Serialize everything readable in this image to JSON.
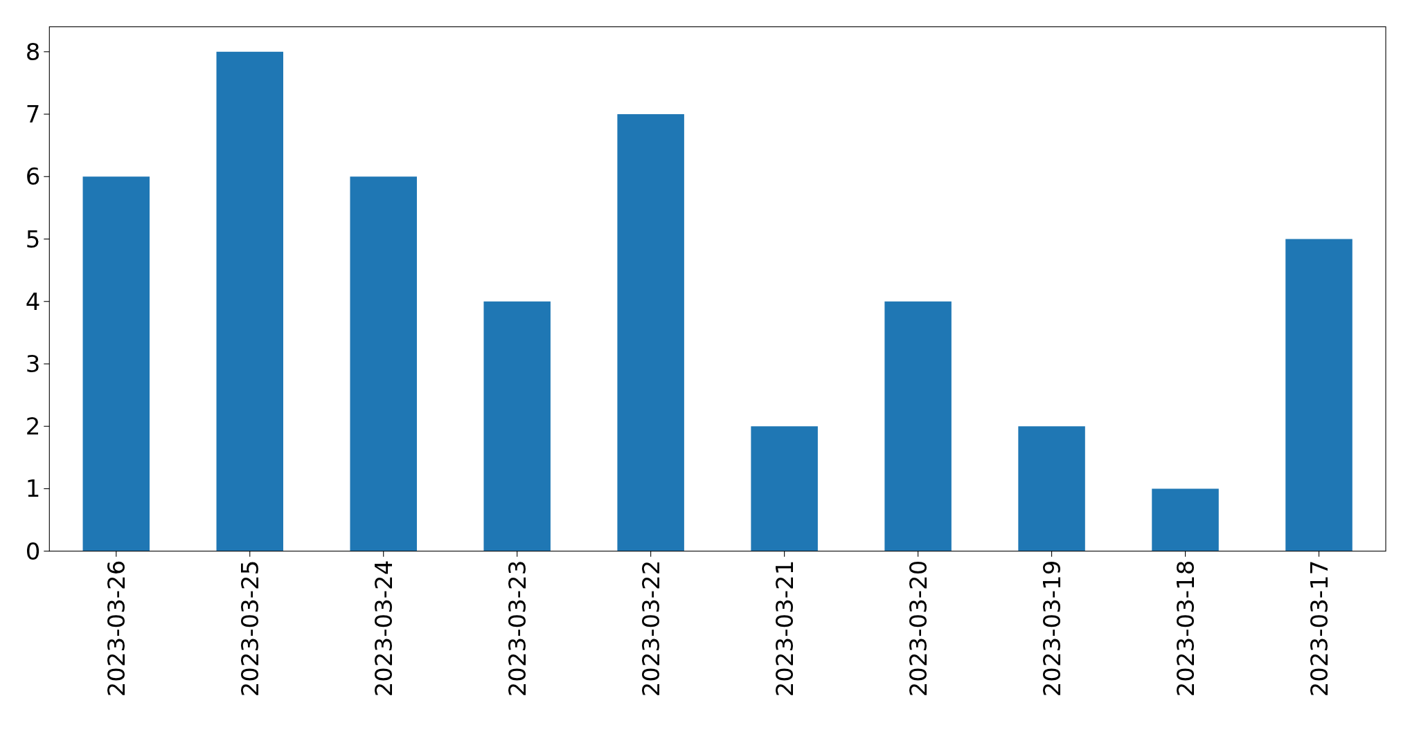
{
  "chart_data": {
    "type": "bar",
    "categories": [
      "2023-03-26",
      "2023-03-25",
      "2023-03-24",
      "2023-03-23",
      "2023-03-22",
      "2023-03-21",
      "2023-03-20",
      "2023-03-19",
      "2023-03-18",
      "2023-03-17"
    ],
    "values": [
      6,
      8,
      6,
      4,
      7,
      2,
      4,
      2,
      1,
      5
    ],
    "color": "#1f77b4",
    "ylim": [
      0,
      8.4
    ],
    "yticks": [
      0,
      1,
      2,
      3,
      4,
      5,
      6,
      7,
      8
    ]
  }
}
